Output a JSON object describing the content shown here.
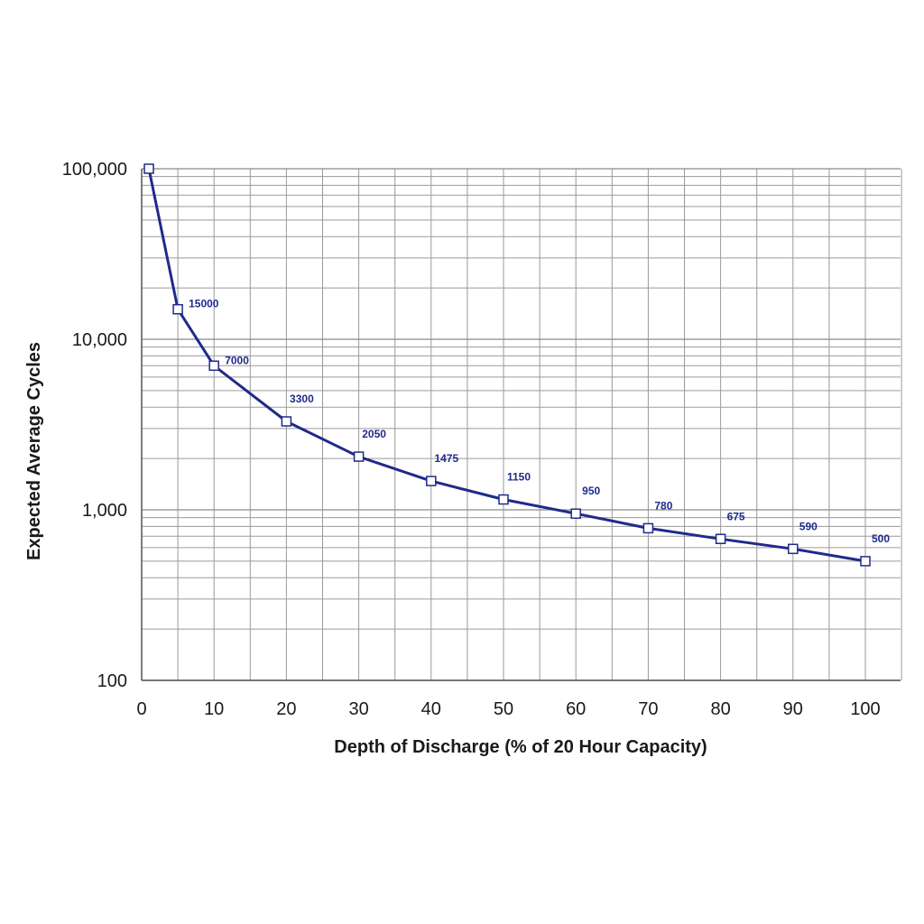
{
  "chart_data": {
    "type": "line",
    "title": "",
    "xlabel": "Depth of Discharge (% of 20 Hour Capacity)",
    "ylabel": "Expected Average Cycles",
    "x_scale": "linear",
    "y_scale": "log",
    "xlim": [
      0,
      100
    ],
    "ylim": [
      100,
      100000
    ],
    "x_ticks": [
      0,
      10,
      20,
      30,
      40,
      50,
      60,
      70,
      80,
      90,
      100
    ],
    "x_tick_labels": [
      "0",
      "10",
      "20",
      "30",
      "40",
      "50",
      "60",
      "70",
      "80",
      "90",
      "100"
    ],
    "y_ticks": [
      100,
      1000,
      10000,
      100000
    ],
    "y_tick_labels": [
      "100",
      "1,000",
      "10,000",
      "100,000"
    ],
    "grid": true,
    "line_color": "#1f2a8c",
    "marker": "square",
    "series": [
      {
        "x": [
          1,
          5,
          10,
          20,
          30,
          40,
          50,
          60,
          70,
          80,
          90,
          100
        ],
        "y": [
          100000,
          15000,
          7000,
          3300,
          2050,
          1475,
          1150,
          950,
          780,
          675,
          590,
          500
        ],
        "data_labels": [
          "",
          "15000",
          "7000",
          "3300",
          "2050",
          "1475",
          "1150",
          "950",
          "780",
          "675",
          "590",
          "500"
        ]
      }
    ]
  }
}
